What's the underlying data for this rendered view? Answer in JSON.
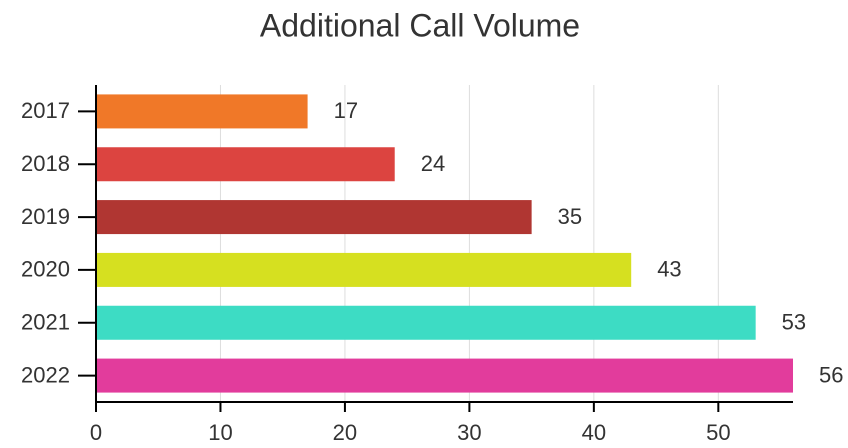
{
  "chart_data": {
    "type": "barh",
    "title": "Additional Call Volume",
    "categories": [
      "2017",
      "2018",
      "2019",
      "2020",
      "2021",
      "2022"
    ],
    "values": [
      17,
      24,
      35,
      43,
      53,
      56
    ],
    "colors": [
      "#f07828",
      "#dc4440",
      "#b03632",
      "#d6e020",
      "#3ddcc4",
      "#e23c9c"
    ],
    "xlim": [
      0,
      56
    ],
    "xticks": [
      0,
      10,
      20,
      30,
      40,
      50
    ],
    "grid": true
  }
}
